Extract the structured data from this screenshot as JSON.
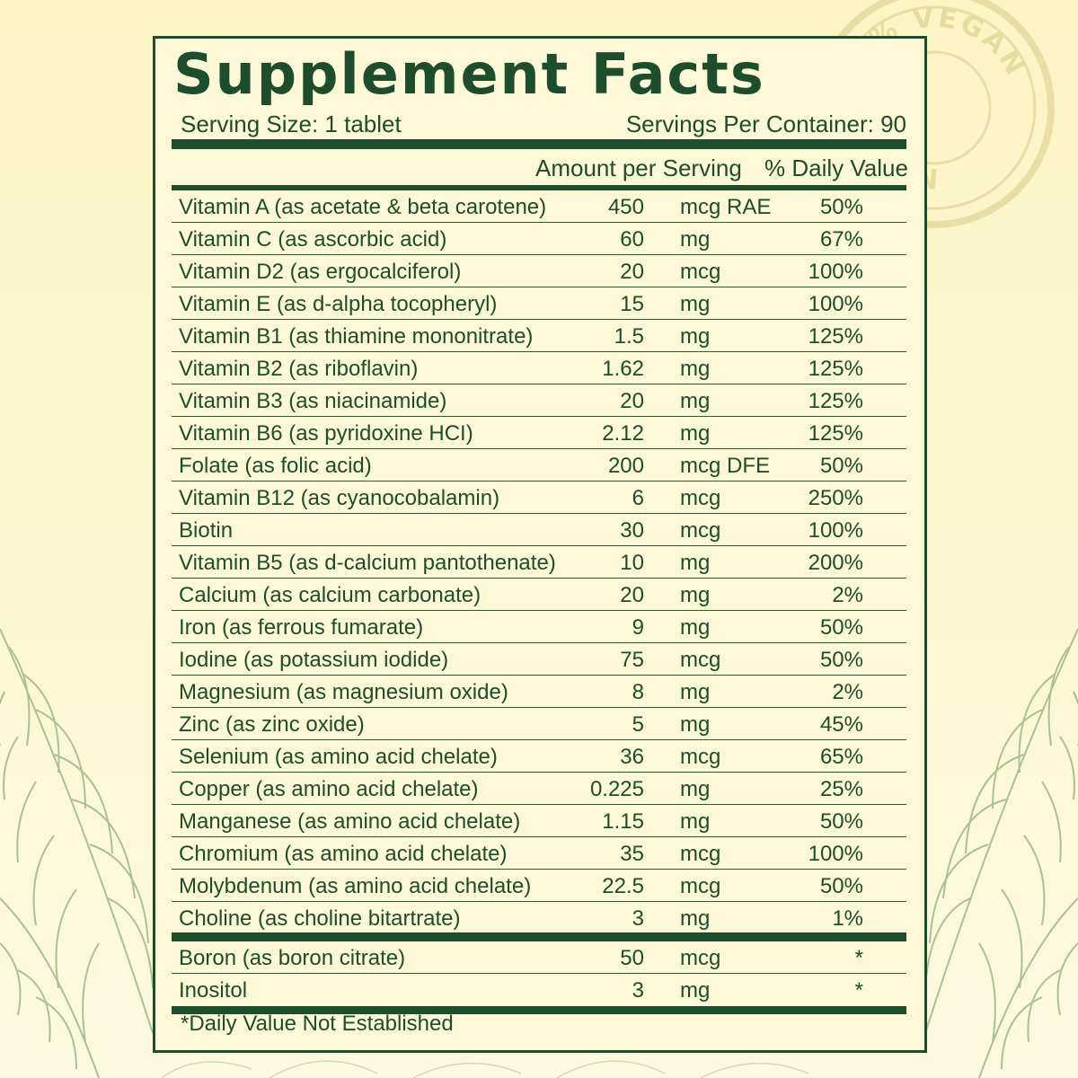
{
  "seal": {
    "text_top": "100% VEGAN",
    "text_bottom": "VEGAN"
  },
  "label": {
    "title": "Supplement Facts",
    "serving_size": "Serving Size: 1 tablet",
    "servings_per_container": "Servings Per Container: 90",
    "col_amount": "Amount per Serving",
    "col_dv": "% Daily Value",
    "footnote": "*Daily Value Not Established"
  },
  "nutrients": [
    {
      "name": "Vitamin A (as acetate & beta carotene)",
      "amount": "450",
      "unit": "mcg RAE",
      "dv": "50%"
    },
    {
      "name": "Vitamin C (as ascorbic acid)",
      "amount": "60",
      "unit": "mg",
      "dv": "67%"
    },
    {
      "name": "Vitamin D2 (as ergocalciferol)",
      "amount": "20",
      "unit": "mcg",
      "dv": "100%"
    },
    {
      "name": "Vitamin E (as d-alpha tocopheryl)",
      "amount": "15",
      "unit": "mg",
      "dv": "100%"
    },
    {
      "name": "Vitamin B1 (as thiamine mononitrate)",
      "amount": "1.5",
      "unit": "mg",
      "dv": "125%"
    },
    {
      "name": "Vitamin B2 (as riboflavin)",
      "amount": "1.62",
      "unit": "mg",
      "dv": "125%"
    },
    {
      "name": "Vitamin B3 (as niacinamide)",
      "amount": "20",
      "unit": "mg",
      "dv": "125%"
    },
    {
      "name": "Vitamin B6 (as pyridoxine HCI)",
      "amount": "2.12",
      "unit": "mg",
      "dv": "125%"
    },
    {
      "name": "Folate (as folic acid)",
      "amount": "200",
      "unit": "mcg DFE",
      "dv": "50%"
    },
    {
      "name": "Vitamin B12 (as cyanocobalamin)",
      "amount": "6",
      "unit": "mcg",
      "dv": "250%"
    },
    {
      "name": "Biotin",
      "amount": "30",
      "unit": "mcg",
      "dv": "100%"
    },
    {
      "name": "Vitamin B5 (as d-calcium pantothenate)",
      "amount": "10",
      "unit": "mg",
      "dv": "200%"
    },
    {
      "name": "Calcium (as calcium carbonate)",
      "amount": "20",
      "unit": "mg",
      "dv": "2%"
    },
    {
      "name": "Iron (as ferrous fumarate)",
      "amount": "9",
      "unit": "mg",
      "dv": "50%"
    },
    {
      "name": "Iodine (as potassium iodide)",
      "amount": "75",
      "unit": "mcg",
      "dv": "50%"
    },
    {
      "name": "Magnesium (as magnesium oxide)",
      "amount": "8",
      "unit": "mg",
      "dv": "2%"
    },
    {
      "name": "Zinc (as zinc oxide)",
      "amount": "5",
      "unit": "mg",
      "dv": "45%"
    },
    {
      "name": "Selenium (as amino acid chelate)",
      "amount": "36",
      "unit": "mcg",
      "dv": "65%"
    },
    {
      "name": "Copper (as amino acid chelate)",
      "amount": "0.225",
      "unit": "mg",
      "dv": "25%"
    },
    {
      "name": "Manganese (as amino acid chelate)",
      "amount": "1.15",
      "unit": "mg",
      "dv": "50%"
    },
    {
      "name": "Chromium (as amino acid chelate)",
      "amount": "35",
      "unit": "mcg",
      "dv": "100%"
    },
    {
      "name": "Molybdenum (as amino acid chelate)",
      "amount": "22.5",
      "unit": "mcg",
      "dv": "50%"
    },
    {
      "name": "Choline (as choline bitartrate)",
      "amount": "3",
      "unit": "mg",
      "dv": "1%"
    }
  ],
  "other_ingredients": [
    {
      "name": "Boron (as boron citrate)",
      "amount": "50",
      "unit": "mcg",
      "dv": "*"
    },
    {
      "name": "Inositol",
      "amount": "3",
      "unit": "mg",
      "dv": "*"
    }
  ]
}
